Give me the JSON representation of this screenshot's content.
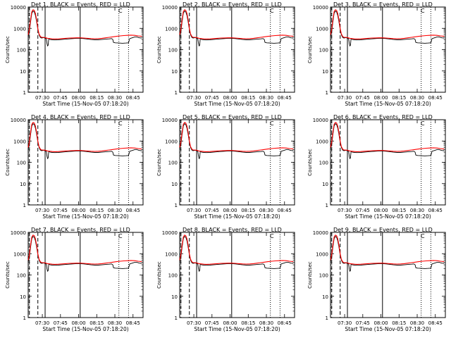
{
  "colors": {
    "events": "#000000",
    "lld": "#ff0000",
    "background": "#ffffff"
  },
  "chart_data": {
    "type": "line",
    "y_scale": "log",
    "ylim": [
      1,
      10000
    ],
    "ylabel": "Counts/sec",
    "xlabel": "Start Time (15-Nov-05 07:18:20)",
    "x_ticks": [
      "07:30",
      "07:45",
      "08:00",
      "08:15",
      "08:30",
      "08:45"
    ],
    "y_ticks": [
      "1",
      "10",
      "100",
      "1000",
      "10000"
    ],
    "legend": "C",
    "grid": false,
    "detectors": [
      {
        "title": "Det 1, BLACK = Events, RED = LLD"
      },
      {
        "title": "Det 2, BLACK = Events, RED = LLD"
      },
      {
        "title": "Det 3, BLACK = Events, RED = LLD"
      },
      {
        "title": "Det 4, BLACK = Events, RED = LLD"
      },
      {
        "title": "Det 5, BLACK = Events, RED = LLD"
      },
      {
        "title": "Det 6, BLACK = Events, RED = LLD"
      },
      {
        "title": "Det 7, BLACK = Events, RED = LLD"
      },
      {
        "title": "Det 8, BLACK = Events, RED = LLD"
      },
      {
        "title": "Det 9, BLACK = Events, RED = LLD"
      }
    ],
    "series": [
      {
        "name": "Events",
        "color": "#000000",
        "points": [
          [
            0,
            400
          ],
          [
            1,
            700
          ],
          [
            2,
            2000
          ],
          [
            3,
            5000
          ],
          [
            4,
            6500
          ],
          [
            5,
            6000
          ],
          [
            6,
            4000
          ],
          [
            7,
            2000
          ],
          [
            8,
            900
          ],
          [
            9,
            500
          ],
          [
            10,
            380
          ],
          [
            11,
            350
          ],
          [
            12,
            360
          ],
          [
            13,
            370
          ],
          [
            14,
            340
          ],
          [
            15,
            330
          ],
          [
            15.5,
            200
          ],
          [
            16,
            150
          ],
          [
            16.5,
            160
          ],
          [
            17,
            330
          ],
          [
            18,
            300
          ],
          [
            20,
            290
          ],
          [
            22,
            285
          ],
          [
            25,
            290
          ],
          [
            28,
            300
          ],
          [
            31,
            310
          ],
          [
            34,
            320
          ],
          [
            37,
            330
          ],
          [
            40,
            340
          ],
          [
            43,
            340
          ],
          [
            46,
            330
          ],
          [
            49,
            315
          ],
          [
            52,
            300
          ],
          [
            55,
            290
          ],
          [
            58,
            290
          ],
          [
            61,
            300
          ],
          [
            64,
            310
          ],
          [
            67,
            320
          ],
          [
            69,
            330
          ],
          [
            70,
            300
          ],
          [
            70.5,
            220
          ],
          [
            72,
            210
          ],
          [
            75,
            205
          ],
          [
            78,
            200
          ],
          [
            81,
            205
          ],
          [
            83,
            210
          ],
          [
            84,
            330
          ],
          [
            86,
            360
          ],
          [
            88,
            390
          ],
          [
            90,
            390
          ],
          [
            92,
            360
          ],
          [
            94,
            350
          ]
        ]
      },
      {
        "name": "LLD",
        "color": "#ff0000",
        "points": [
          [
            0,
            500
          ],
          [
            1,
            900
          ],
          [
            2,
            2500
          ],
          [
            3,
            6000
          ],
          [
            4,
            7500
          ],
          [
            5,
            7000
          ],
          [
            6,
            5000
          ],
          [
            7,
            2500
          ],
          [
            8,
            1000
          ],
          [
            9,
            550
          ],
          [
            10,
            420
          ],
          [
            11,
            380
          ],
          [
            12,
            380
          ],
          [
            14,
            370
          ],
          [
            16,
            340
          ],
          [
            18,
            330
          ],
          [
            20,
            320
          ],
          [
            22,
            315
          ],
          [
            25,
            320
          ],
          [
            28,
            330
          ],
          [
            31,
            340
          ],
          [
            34,
            350
          ],
          [
            37,
            355
          ],
          [
            40,
            360
          ],
          [
            43,
            360
          ],
          [
            46,
            350
          ],
          [
            49,
            340
          ],
          [
            52,
            330
          ],
          [
            55,
            325
          ],
          [
            58,
            330
          ],
          [
            61,
            340
          ],
          [
            64,
            360
          ],
          [
            67,
            380
          ],
          [
            70,
            400
          ],
          [
            73,
            420
          ],
          [
            76,
            440
          ],
          [
            79,
            460
          ],
          [
            82,
            470
          ],
          [
            85,
            480
          ],
          [
            88,
            470
          ],
          [
            91,
            440
          ],
          [
            94,
            420
          ]
        ]
      }
    ],
    "markers": [
      {
        "x": 1.0,
        "style": "dashed"
      },
      {
        "x": 8.0,
        "style": "dashed"
      },
      {
        "x": 14.0,
        "style": "solid"
      },
      {
        "x": 43.0,
        "style": "solid"
      },
      {
        "x": 75.0,
        "style": "dotted"
      },
      {
        "x": 83.0,
        "style": "dotted"
      }
    ],
    "xlim": [
      0,
      95
    ],
    "x_tick_positions": [
      11.7,
      26.7,
      41.7,
      56.7,
      71.7,
      86.7
    ]
  }
}
